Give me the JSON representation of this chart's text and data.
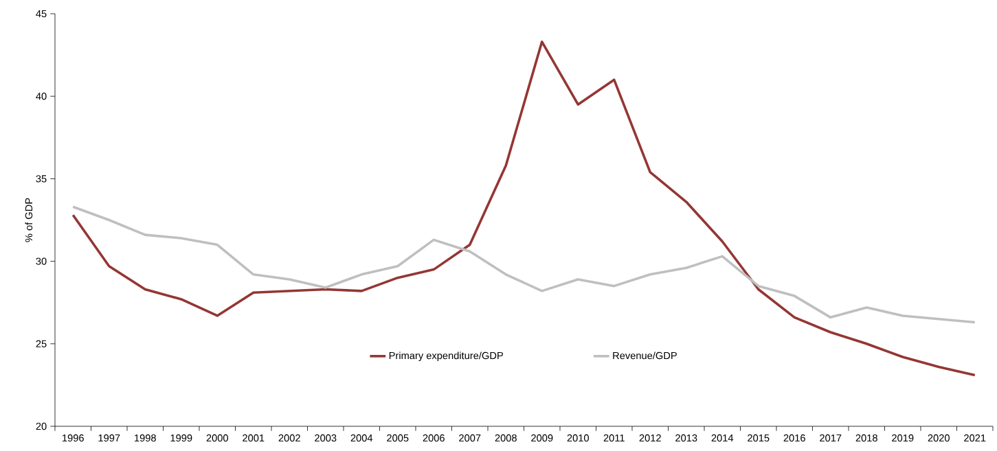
{
  "chart_data": {
    "type": "line",
    "ylabel": "% of GDP",
    "categories": [
      "1996",
      "1997",
      "1998",
      "1999",
      "2000",
      "2001",
      "2002",
      "2003",
      "2004",
      "2005",
      "2006",
      "2007",
      "2008",
      "2009",
      "2010",
      "2011",
      "2012",
      "2013",
      "2014",
      "2015",
      "2016",
      "2017",
      "2018",
      "2019",
      "2020",
      "2021"
    ],
    "series": [
      {
        "name": "Primary expenditure/GDP",
        "color": "#943634",
        "values": [
          32.8,
          29.7,
          28.3,
          27.7,
          26.7,
          28.1,
          28.2,
          28.3,
          28.2,
          29.0,
          29.5,
          31.0,
          35.8,
          43.3,
          39.5,
          41.0,
          35.4,
          33.6,
          31.2,
          28.3,
          26.6,
          25.7,
          25.0,
          24.2,
          23.6,
          23.1
        ]
      },
      {
        "name": "Revenue/GDP",
        "color": "#bfbfbf",
        "values": [
          33.3,
          32.5,
          31.6,
          31.4,
          31.0,
          29.2,
          28.9,
          28.4,
          29.2,
          29.7,
          31.3,
          30.6,
          29.2,
          28.2,
          28.9,
          28.5,
          29.2,
          29.6,
          30.3,
          28.5,
          27.9,
          26.6,
          27.2,
          26.7,
          26.5,
          26.3
        ]
      }
    ],
    "ylim": [
      20,
      45
    ],
    "yticks": [
      20,
      25,
      30,
      35,
      40,
      45
    ],
    "grid": false,
    "legend": "bottom",
    "line_style": "solid",
    "marker": "none"
  }
}
